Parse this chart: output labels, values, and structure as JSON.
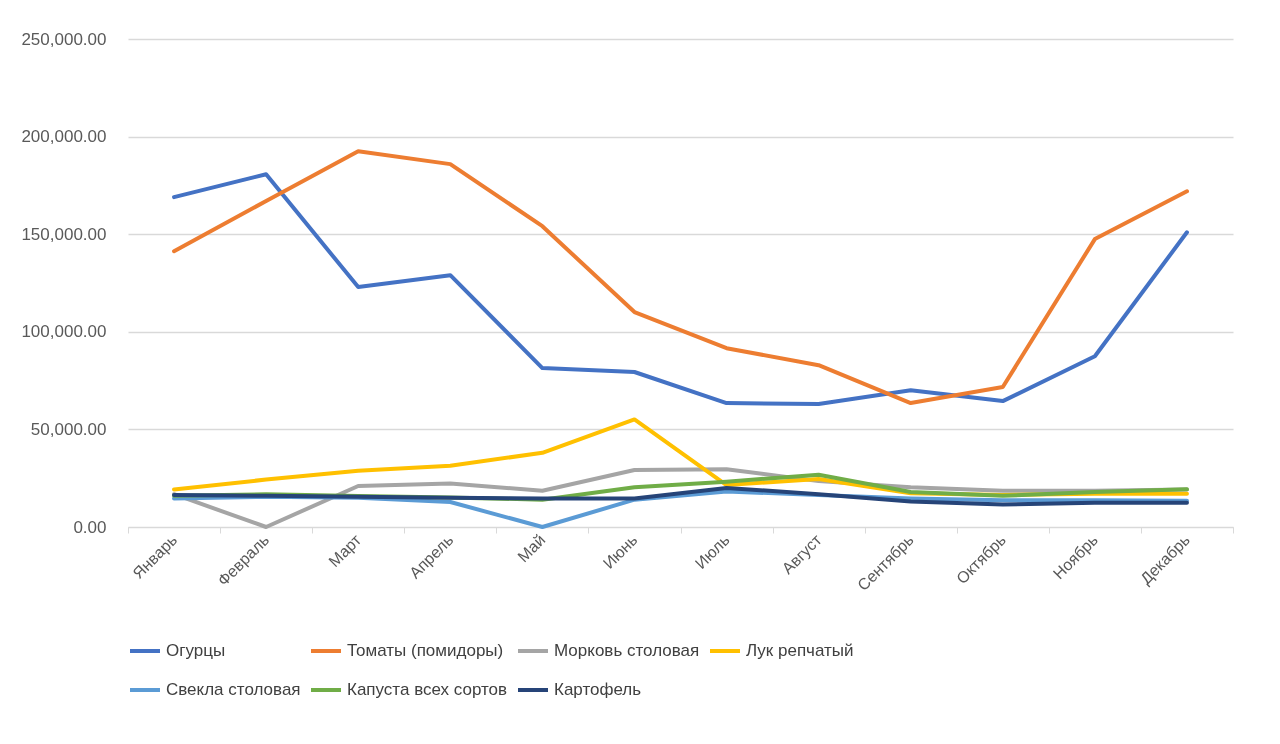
{
  "chart_data": {
    "type": "line",
    "categories": [
      "Январь",
      "Февраль",
      "Март",
      "Апрель",
      "Май",
      "Июнь",
      "Июль",
      "Август",
      "Сентябрь",
      "Октябрь",
      "Ноябрь",
      "Декабрь"
    ],
    "series": [
      {
        "name": "Огурцы",
        "color": "#4472c4",
        "values": [
          169000,
          180700,
          122900,
          129000,
          81400,
          79400,
          63500,
          63000,
          70100,
          64500,
          87500,
          151000
        ]
      },
      {
        "name": "Томаты (помидоры)",
        "color": "#ed7d31",
        "values": [
          141300,
          167000,
          192500,
          185900,
          154100,
          110100,
          91600,
          82900,
          63500,
          71700,
          147500,
          172000
        ]
      },
      {
        "name": "Морковь столовая",
        "color": "#a5a5a5",
        "values": [
          16800,
          0,
          21000,
          22300,
          18600,
          29200,
          29600,
          23500,
          20400,
          18600,
          18600,
          19200
        ]
      },
      {
        "name": "Лук репчатый",
        "color": "#ffc000",
        "values": [
          19200,
          24300,
          28800,
          31400,
          38000,
          55100,
          21500,
          24600,
          17300,
          16400,
          17000,
          17000
        ]
      },
      {
        "name": "Свекла столовая",
        "color": "#5b9bd5",
        "values": [
          14600,
          15500,
          15000,
          12800,
          0,
          14000,
          18200,
          16400,
          14600,
          13700,
          13700,
          13500
        ]
      },
      {
        "name": "Капуста всех сортов",
        "color": "#70ad47",
        "values": [
          16000,
          16800,
          15900,
          15100,
          14000,
          20400,
          23200,
          26800,
          17900,
          16000,
          17900,
          19300
        ]
      },
      {
        "name": "Картофель",
        "color": "#264478",
        "values": [
          16400,
          16000,
          15500,
          15000,
          14600,
          14600,
          20000,
          16800,
          13100,
          11500,
          12400,
          12400
        ]
      }
    ],
    "ylim": [
      0,
      250000
    ],
    "yticks": [
      {
        "value": 0,
        "label": "0.00"
      },
      {
        "value": 50000,
        "label": "50,000.00"
      },
      {
        "value": 100000,
        "label": "100,000.00"
      },
      {
        "value": 150000,
        "label": "150,000.00"
      },
      {
        "value": 200000,
        "label": "200,000.00"
      },
      {
        "value": 250000,
        "label": "250,000.00"
      }
    ],
    "grid": "y",
    "legend": "bottom",
    "line_style": "solid"
  }
}
